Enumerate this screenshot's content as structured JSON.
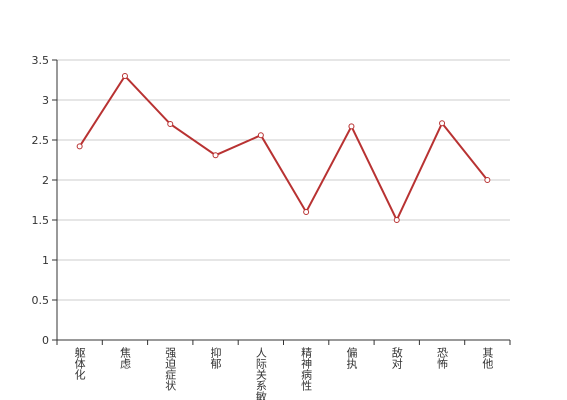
{
  "chart_data": {
    "type": "line",
    "categories": [
      "躯体化",
      "焦虑",
      "强迫症状",
      "抑郁",
      "人际关系敏感",
      "精神病性",
      "偏执",
      "敌对",
      "恐怖",
      "其他"
    ],
    "values": [
      2.42,
      3.3,
      2.7,
      2.31,
      2.56,
      1.6,
      2.67,
      1.5,
      2.71,
      2.0
    ],
    "color": "#b83232",
    "ylim": [
      0,
      3.5
    ],
    "yticks": [
      0,
      0.5,
      1,
      1.5,
      2,
      2.5,
      3,
      3.5
    ],
    "grid": true
  }
}
